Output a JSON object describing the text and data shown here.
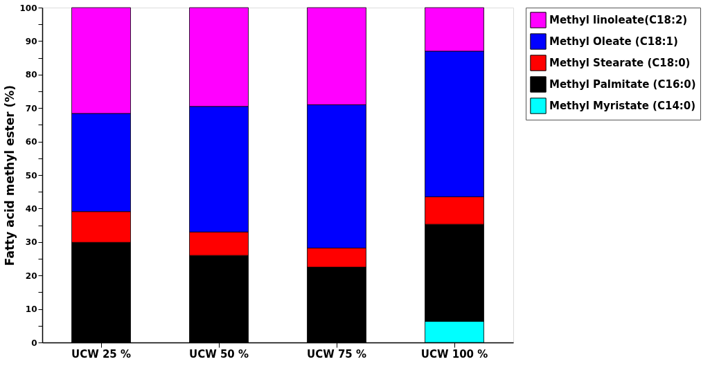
{
  "chart_data": {
    "type": "bar",
    "stacked": true,
    "ylabel": "Fatty acid methyl ester (%)",
    "categories": [
      "UCW 25 %",
      "UCW 50 %",
      "UCW 75 %",
      "UCW 100 %"
    ],
    "series": [
      {
        "name": "Methyl Myristate (C14:0)",
        "color": "#00ffff",
        "values": [
          0,
          0,
          0,
          6.3
        ]
      },
      {
        "name": "Methyl Palmitate (C16:0)",
        "color": "#000000",
        "values": [
          29.9,
          26.0,
          22.5,
          29.0
        ]
      },
      {
        "name": "Methyl Stearate (C18:0)",
        "color": "#ff0000",
        "values": [
          9.2,
          7.0,
          5.7,
          8.2
        ]
      },
      {
        "name": "Methyl Oleate (C18:1)",
        "color": "#0000ff",
        "values": [
          29.3,
          37.5,
          42.8,
          43.5
        ]
      },
      {
        "name": "Methyl linoleate(C18:2)",
        "color": "#ff00ff",
        "values": [
          31.6,
          29.5,
          29.0,
          13.0
        ]
      }
    ],
    "ylim": [
      0,
      100
    ],
    "yticks": [
      0,
      {
        "value": 5,
        "label": null
      },
      10,
      {
        "value": 15,
        "label": null
      },
      20,
      {
        "value": 25,
        "label": null
      },
      30,
      {
        "value": 35,
        "label": null
      },
      40,
      {
        "value": 45,
        "label": null
      },
      50,
      {
        "value": 55,
        "label": null
      },
      60,
      {
        "value": 65,
        "label": null
      },
      70,
      {
        "value": 75,
        "label": null
      },
      80,
      {
        "value": 85,
        "label": null
      },
      90,
      {
        "value": 95,
        "label": null
      },
      100
    ],
    "grid": false,
    "legend": "top right"
  }
}
